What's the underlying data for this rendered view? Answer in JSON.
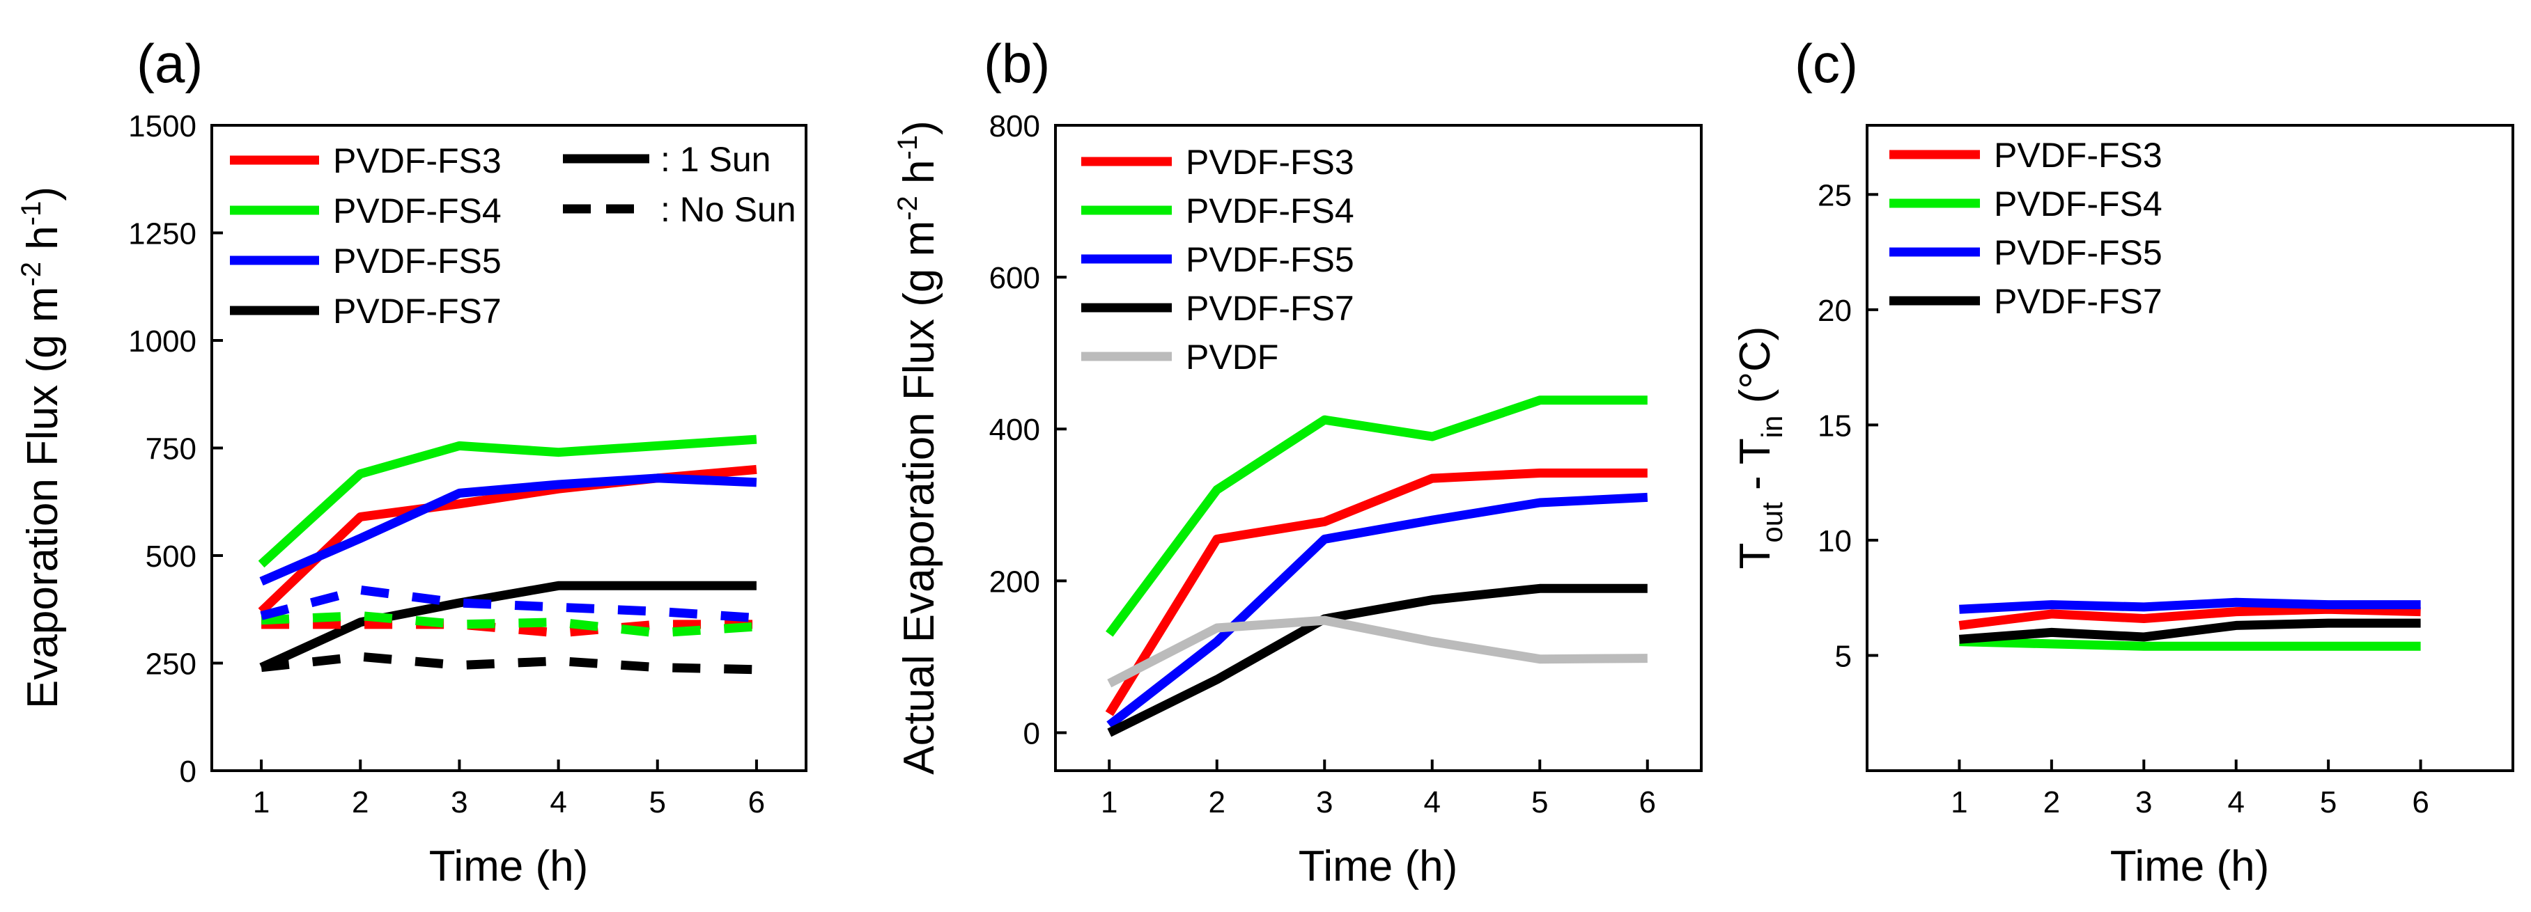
{
  "figure": {
    "background": "#ffffff",
    "axis_color": "#000000"
  },
  "chart_data": [
    {
      "type": "line",
      "panel_label": "(a)",
      "xlabel": "Time (h)",
      "ylabel": "Evaporation Flux (g m-2 h-1)",
      "ylabel_parts": {
        "main": "Evaporation Flux (g m",
        "exp1": "-2",
        "mid": " h",
        "exp2": "-1",
        "end": ")"
      },
      "xlim": [
        0.5,
        6.5
      ],
      "ylim": [
        0,
        1500
      ],
      "x_ticks": [
        1,
        2,
        3,
        4,
        5,
        6
      ],
      "y_ticks": [
        0,
        250,
        500,
        750,
        1000,
        1250,
        1500
      ],
      "x": [
        1,
        2,
        3,
        4,
        5,
        6
      ],
      "series": [
        {
          "name": "PVDF-FS3",
          "color": "#ff0000",
          "style": "solid",
          "values": [
            370,
            590,
            620,
            655,
            680,
            700
          ]
        },
        {
          "name": "PVDF-FS4",
          "color": "#00ee00",
          "style": "solid",
          "values": [
            480,
            690,
            755,
            740,
            755,
            770
          ]
        },
        {
          "name": "PVDF-FS5",
          "color": "#0000ff",
          "style": "solid",
          "values": [
            440,
            540,
            645,
            665,
            680,
            670
          ]
        },
        {
          "name": "PVDF-FS7",
          "color": "#000000",
          "style": "solid",
          "values": [
            240,
            345,
            390,
            430,
            430,
            430
          ]
        },
        {
          "name": "PVDF-FS3 (No Sun)",
          "color": "#ff0000",
          "style": "dashed",
          "values": [
            340,
            340,
            340,
            320,
            340,
            340
          ]
        },
        {
          "name": "PVDF-FS4 (No Sun)",
          "color": "#00ee00",
          "style": "dashed",
          "values": [
            350,
            360,
            340,
            345,
            320,
            335
          ]
        },
        {
          "name": "PVDF-FS5 (No Sun)",
          "color": "#0000ff",
          "style": "dashed",
          "values": [
            360,
            420,
            390,
            380,
            370,
            355
          ]
        },
        {
          "name": "PVDF-FS7 (No Sun)",
          "color": "#000000",
          "style": "dashed",
          "values": [
            240,
            265,
            245,
            255,
            240,
            235
          ]
        }
      ],
      "legend": [
        {
          "label": "PVDF-FS3",
          "color": "#ff0000",
          "style": "solid"
        },
        {
          "label": "PVDF-FS4",
          "color": "#00ee00",
          "style": "solid"
        },
        {
          "label": "PVDF-FS5",
          "color": "#0000ff",
          "style": "solid"
        },
        {
          "label": "PVDF-FS7",
          "color": "#000000",
          "style": "solid"
        }
      ],
      "legend_style": [
        {
          "label": ": 1 Sun",
          "color": "#000000",
          "style": "solid"
        },
        {
          "label": ": No Sun",
          "color": "#000000",
          "style": "dashed"
        }
      ]
    },
    {
      "type": "line",
      "panel_label": "(b)",
      "xlabel": "Time (h)",
      "ylabel": "Actual Evaporation Flux (g m-2 h-1)",
      "ylabel_parts": {
        "main": "Actual Evaporation Flux (g m",
        "exp1": "-2",
        "mid": " h",
        "exp2": "-1",
        "end": ")"
      },
      "xlim": [
        0.5,
        6.5
      ],
      "ylim": [
        -50,
        800
      ],
      "x_ticks": [
        1,
        2,
        3,
        4,
        5,
        6
      ],
      "y_ticks": [
        0,
        200,
        400,
        600,
        800
      ],
      "x": [
        1,
        2,
        3,
        4,
        5,
        6
      ],
      "series": [
        {
          "name": "PVDF-FS3",
          "color": "#ff0000",
          "style": "solid",
          "values": [
            25,
            255,
            278,
            335,
            342,
            342
          ]
        },
        {
          "name": "PVDF-FS4",
          "color": "#00ee00",
          "style": "solid",
          "values": [
            130,
            320,
            412,
            390,
            438,
            438
          ]
        },
        {
          "name": "PVDF-FS5",
          "color": "#0000ff",
          "style": "solid",
          "values": [
            10,
            120,
            255,
            280,
            303,
            310
          ]
        },
        {
          "name": "PVDF-FS7",
          "color": "#000000",
          "style": "solid",
          "values": [
            0,
            70,
            150,
            175,
            190,
            190
          ]
        },
        {
          "name": "PVDF",
          "color": "#bbbbbb",
          "style": "solid",
          "values": [
            65,
            138,
            148,
            120,
            97,
            98
          ]
        }
      ],
      "legend": [
        {
          "label": "PVDF-FS3",
          "color": "#ff0000",
          "style": "solid"
        },
        {
          "label": "PVDF-FS4",
          "color": "#00ee00",
          "style": "solid"
        },
        {
          "label": "PVDF-FS5",
          "color": "#0000ff",
          "style": "solid"
        },
        {
          "label": "PVDF-FS7",
          "color": "#000000",
          "style": "solid"
        },
        {
          "label": "PVDF",
          "color": "#bbbbbb",
          "style": "solid"
        }
      ]
    },
    {
      "type": "line",
      "panel_label": "(c)",
      "xlabel": "Time (h)",
      "ylabel": "Tout - Tin (°C)",
      "ylabel_parts": {
        "T1": "T",
        "sub1": "out",
        "minus": " - T",
        "sub2": "in",
        "end": " (°C)"
      },
      "xlim": [
        0,
        7
      ],
      "ylim": [
        0,
        28
      ],
      "x_ticks": [
        1,
        2,
        3,
        4,
        5,
        6
      ],
      "y_ticks": [
        5,
        10,
        15,
        20,
        25
      ],
      "x": [
        1,
        2,
        3,
        4,
        5,
        6
      ],
      "series": [
        {
          "name": "PVDF-FS3",
          "color": "#ff0000",
          "style": "solid",
          "values": [
            6.3,
            6.8,
            6.6,
            6.9,
            7.0,
            6.9
          ]
        },
        {
          "name": "PVDF-FS4",
          "color": "#00ee00",
          "style": "solid",
          "values": [
            5.6,
            5.5,
            5.4,
            5.4,
            5.4,
            5.4
          ]
        },
        {
          "name": "PVDF-FS5",
          "color": "#0000ff",
          "style": "solid",
          "values": [
            7.0,
            7.2,
            7.1,
            7.3,
            7.2,
            7.2
          ]
        },
        {
          "name": "PVDF-FS7",
          "color": "#000000",
          "style": "solid",
          "values": [
            5.7,
            6.0,
            5.8,
            6.3,
            6.4,
            6.4
          ]
        }
      ],
      "legend": [
        {
          "label": "PVDF-FS3",
          "color": "#ff0000",
          "style": "solid"
        },
        {
          "label": "PVDF-FS4",
          "color": "#00ee00",
          "style": "solid"
        },
        {
          "label": "PVDF-FS5",
          "color": "#0000ff",
          "style": "solid"
        },
        {
          "label": "PVDF-FS7",
          "color": "#000000",
          "style": "solid"
        }
      ]
    }
  ]
}
